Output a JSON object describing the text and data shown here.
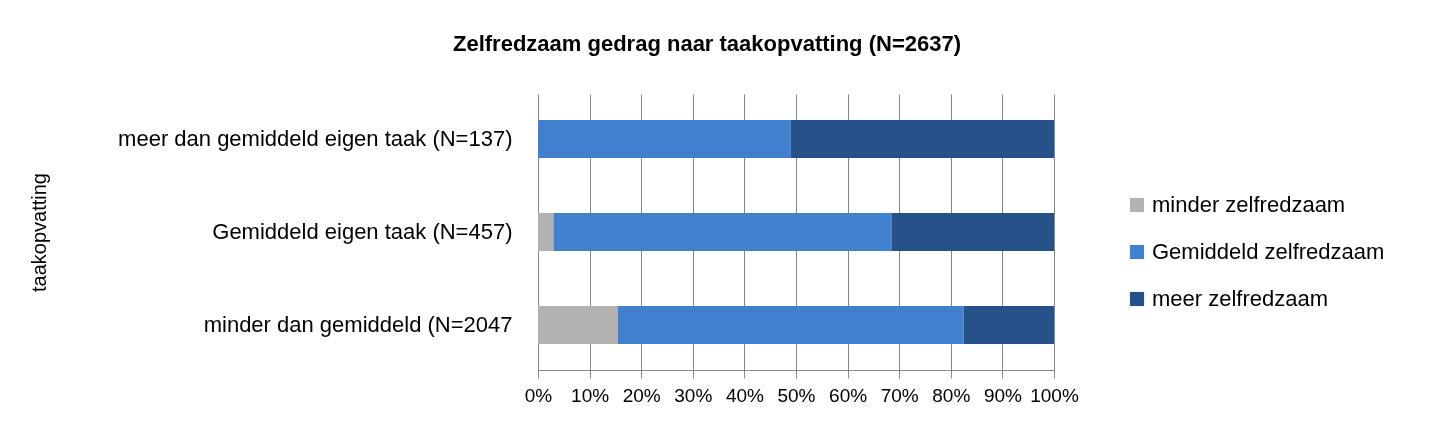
{
  "chart_data": {
    "type": "bar",
    "orientation": "horizontal",
    "stacked": true,
    "title": "Zelfredzaam gedrag naar taakopvatting (N=2637)",
    "ylabel": "taakopvatting",
    "categories": [
      "meer dan gemiddeld eigen taak (N=137)",
      "Gemiddeld eigen taak (N=457)",
      "minder dan gemiddeld (N=2047"
    ],
    "series": [
      {
        "name": "minder zelfredzaam",
        "color": "#b2b2b2",
        "values": [
          null,
          3,
          15.5
        ]
      },
      {
        "name": "Gemiddeld zelfredzaam",
        "color": "#4180cc",
        "values": [
          49,
          65.5,
          67
        ]
      },
      {
        "name": "meer zelfredzaam",
        "color": "#265189",
        "values": [
          51,
          31.5,
          17.5
        ]
      }
    ],
    "xlim": [
      0,
      100
    ],
    "xticks": [
      {
        "value": 0,
        "label": "0%"
      },
      {
        "value": 10,
        "label": "10%"
      },
      {
        "value": 20,
        "label": "20%"
      },
      {
        "value": 30,
        "label": "30%"
      },
      {
        "value": 40,
        "label": "40%"
      },
      {
        "value": 50,
        "label": "50%"
      },
      {
        "value": 60,
        "label": "60%"
      },
      {
        "value": 70,
        "label": "70%"
      },
      {
        "value": 80,
        "label": "80%"
      },
      {
        "value": 90,
        "label": "90%"
      },
      {
        "value": 100,
        "label": "100%"
      }
    ],
    "grid": "x",
    "legend": "right"
  }
}
